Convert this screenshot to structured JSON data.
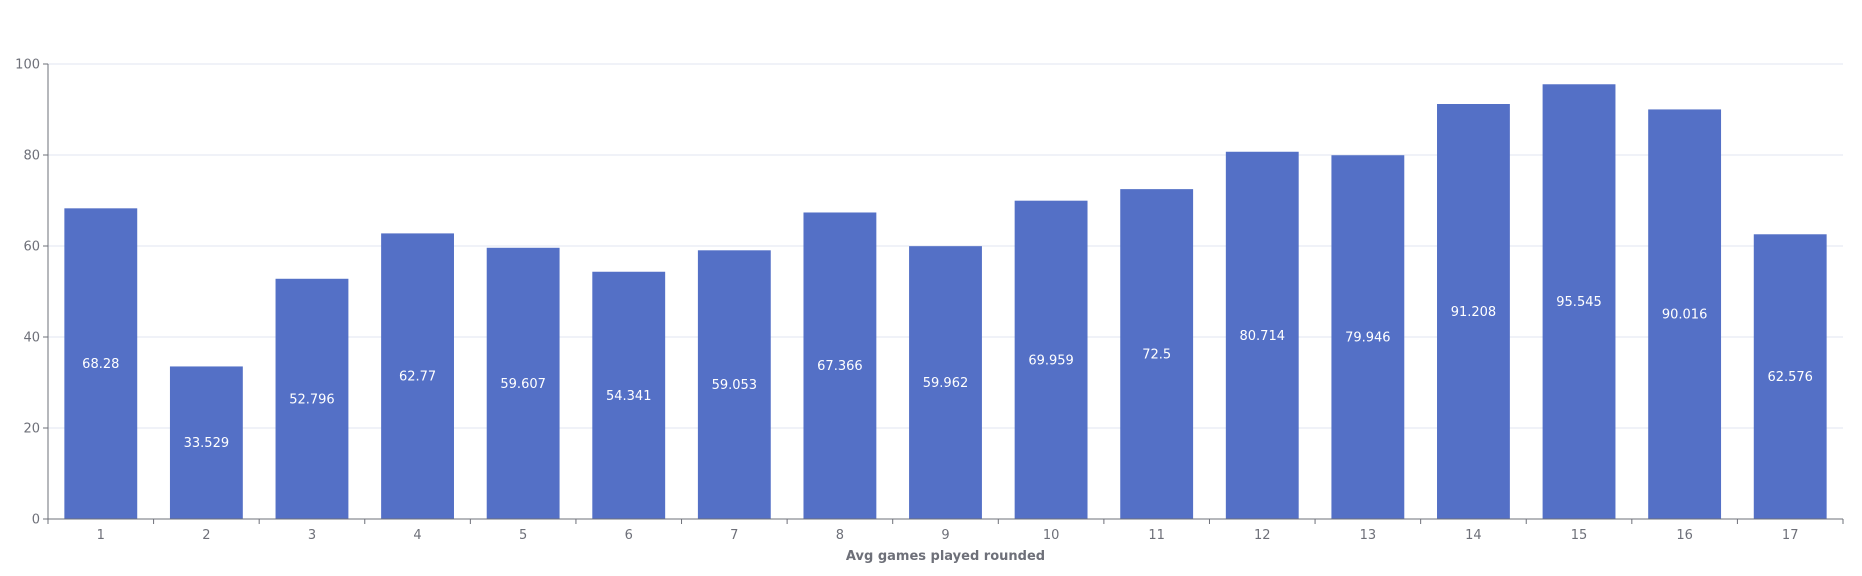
{
  "chart_data": {
    "type": "bar",
    "title": "",
    "xlabel": "Avg games played rounded",
    "ylabel": "",
    "categories": [
      "1",
      "2",
      "3",
      "4",
      "5",
      "6",
      "7",
      "8",
      "9",
      "10",
      "11",
      "12",
      "13",
      "14",
      "15",
      "16",
      "17"
    ],
    "values": [
      68.28,
      33.529,
      52.796,
      62.77,
      59.607,
      54.341,
      59.053,
      67.366,
      59.962,
      69.959,
      72.5,
      80.714,
      79.946,
      91.208,
      95.545,
      90.016,
      62.576
    ],
    "value_labels": [
      "68.28",
      "33.529",
      "52.796",
      "62.77",
      "59.607",
      "54.341",
      "59.053",
      "67.366",
      "59.962",
      "69.959",
      "72.5",
      "80.714",
      "79.946",
      "91.208",
      "95.545",
      "90.016",
      "62.576"
    ],
    "ylim": [
      0,
      100
    ],
    "yticks": [
      "0",
      "20",
      "40",
      "60",
      "80",
      "100"
    ],
    "grid": true,
    "bar_color": "#5470c6",
    "legend": "none"
  }
}
